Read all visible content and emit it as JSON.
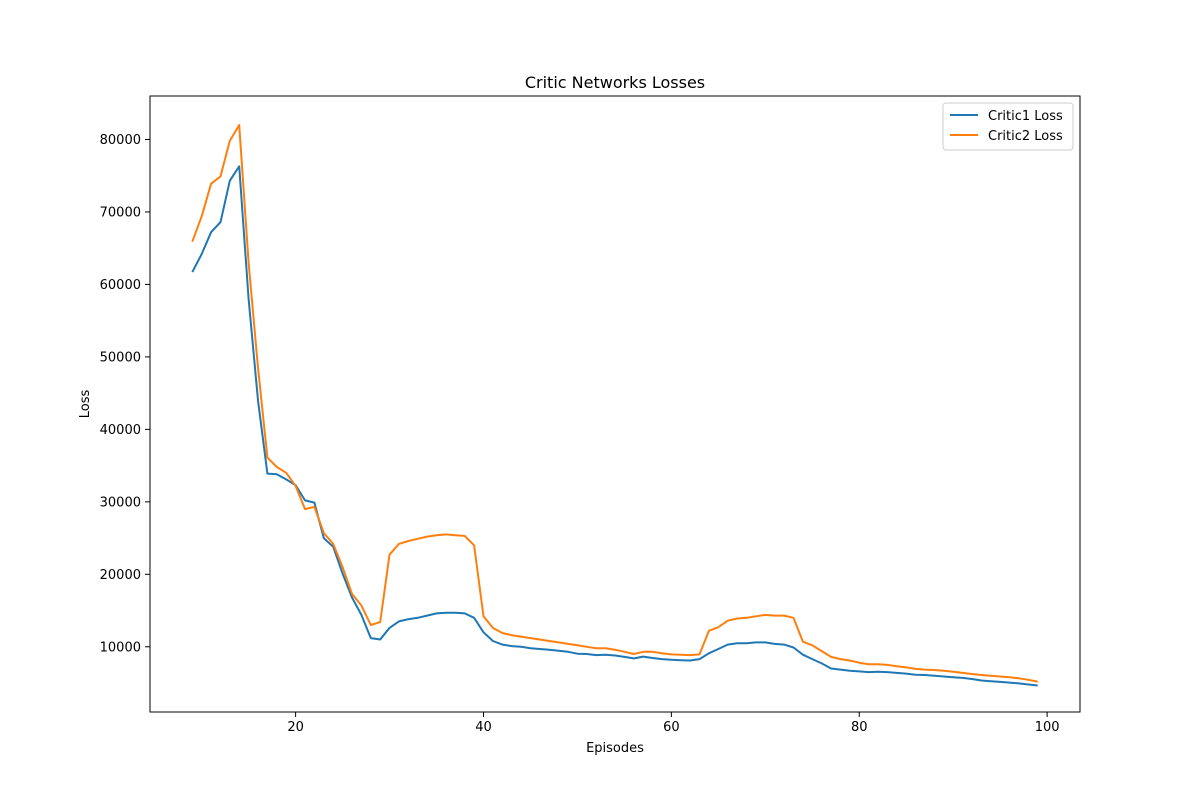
{
  "chart_data": {
    "type": "line",
    "title": "Critic Networks Losses",
    "xlabel": "Episodes",
    "ylabel": "Loss",
    "xlim": [
      4.5,
      103.5
    ],
    "ylim": [
      1000,
      86000
    ],
    "xticks": [
      20,
      40,
      60,
      80,
      100
    ],
    "yticks": [
      10000,
      20000,
      30000,
      40000,
      50000,
      60000,
      70000,
      80000
    ],
    "grid": false,
    "legend_position": "top-right",
    "x": [
      9,
      10,
      11,
      12,
      13,
      14,
      15,
      16,
      17,
      18,
      19,
      20,
      21,
      22,
      23,
      24,
      25,
      26,
      27,
      28,
      29,
      30,
      31,
      32,
      33,
      34,
      35,
      36,
      37,
      38,
      39,
      40,
      41,
      42,
      43,
      44,
      45,
      46,
      47,
      48,
      49,
      50,
      51,
      52,
      53,
      54,
      55,
      56,
      57,
      58,
      59,
      60,
      61,
      62,
      63,
      64,
      65,
      66,
      67,
      68,
      69,
      70,
      71,
      72,
      73,
      74,
      75,
      76,
      77,
      78,
      79,
      80,
      81,
      82,
      83,
      84,
      85,
      86,
      87,
      88,
      89,
      90,
      91,
      92,
      93,
      94,
      95,
      96,
      97,
      98,
      99
    ],
    "series": [
      {
        "name": "Critic1 Loss",
        "color": "#1f77b4",
        "values": [
          61700,
          64200,
          67200,
          68600,
          74300,
          76300,
          58000,
          44000,
          33900,
          33800,
          33100,
          32300,
          30200,
          29900,
          25000,
          23800,
          20100,
          16800,
          14400,
          11200,
          11000,
          12600,
          13500,
          13800,
          14000,
          14300,
          14600,
          14700,
          14700,
          14600,
          14000,
          12000,
          10800,
          10300,
          10100,
          10000,
          9800,
          9700,
          9600,
          9450,
          9300,
          9050,
          9000,
          8850,
          8900,
          8800,
          8600,
          8400,
          8650,
          8450,
          8300,
          8200,
          8150,
          8100,
          8300,
          9100,
          9700,
          10300,
          10500,
          10500,
          10600,
          10600,
          10400,
          10300,
          9900,
          8900,
          8300,
          7700,
          7000,
          6850,
          6700,
          6600,
          6500,
          6550,
          6500,
          6400,
          6300,
          6150,
          6100,
          6000,
          5900,
          5800,
          5700,
          5550,
          5350,
          5250,
          5150,
          5050,
          4950,
          4800,
          4650
        ]
      },
      {
        "name": "Critic2 Loss",
        "color": "#ff7f0e",
        "values": [
          65900,
          69400,
          73900,
          74900,
          79800,
          82000,
          63000,
          48500,
          36100,
          34800,
          34000,
          32200,
          29000,
          29300,
          25700,
          24200,
          21000,
          17300,
          15700,
          13000,
          13400,
          22700,
          24200,
          24600,
          24900,
          25200,
          25400,
          25500,
          25400,
          25300,
          24000,
          14200,
          12600,
          11900,
          11600,
          11400,
          11200,
          11000,
          10800,
          10600,
          10400,
          10200,
          10000,
          9800,
          9800,
          9600,
          9300,
          9000,
          9300,
          9300,
          9100,
          8950,
          8900,
          8850,
          8950,
          12200,
          12700,
          13600,
          13900,
          14000,
          14200,
          14400,
          14300,
          14300,
          14000,
          10700,
          10200,
          9400,
          8600,
          8300,
          8100,
          7800,
          7600,
          7600,
          7500,
          7300,
          7150,
          6950,
          6850,
          6800,
          6700,
          6550,
          6400,
          6250,
          6100,
          6000,
          5900,
          5800,
          5650,
          5450,
          5200
        ]
      }
    ]
  }
}
